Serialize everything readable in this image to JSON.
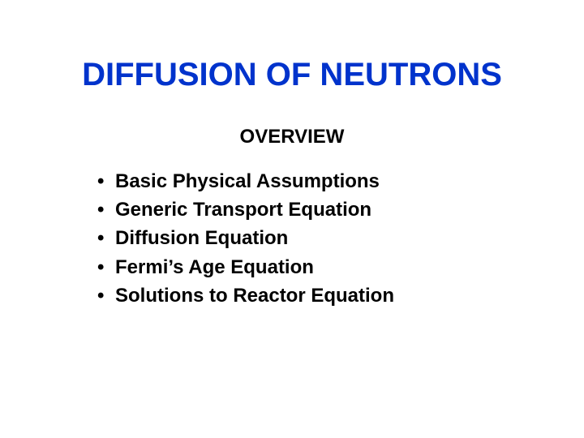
{
  "title": {
    "text": "DIFFUSION OF NEUTRONS",
    "color": "#0033cc",
    "fontsize": 40
  },
  "subtitle": {
    "text": "OVERVIEW",
    "color": "#000000",
    "fontsize": 24
  },
  "bullets": {
    "items": [
      "Basic Physical Assumptions",
      "Generic Transport Equation",
      "Diffusion Equation",
      "Fermi’s Age Equation",
      "Solutions to Reactor Equation"
    ],
    "color": "#000000",
    "fontsize": 24,
    "line_height": 1.3
  },
  "background_color": "#ffffff"
}
